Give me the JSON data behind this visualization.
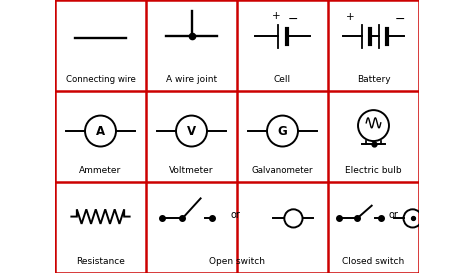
{
  "bg_color": "#ffffff",
  "grid_color": "#cc0000",
  "line_color": "#000000",
  "text_color": "#000000",
  "figsize": [
    4.74,
    2.73
  ],
  "dpi": 100,
  "lw": 1.4,
  "labels": {
    "row0": [
      "Connecting wire",
      "A wire joint",
      "Cell",
      "Battery"
    ],
    "row1": [
      "Ammeter",
      "Voltmeter",
      "Galvanometer",
      "Electric bulb"
    ],
    "row2": [
      "Resistance",
      "Open switch",
      "Closed switch"
    ]
  }
}
